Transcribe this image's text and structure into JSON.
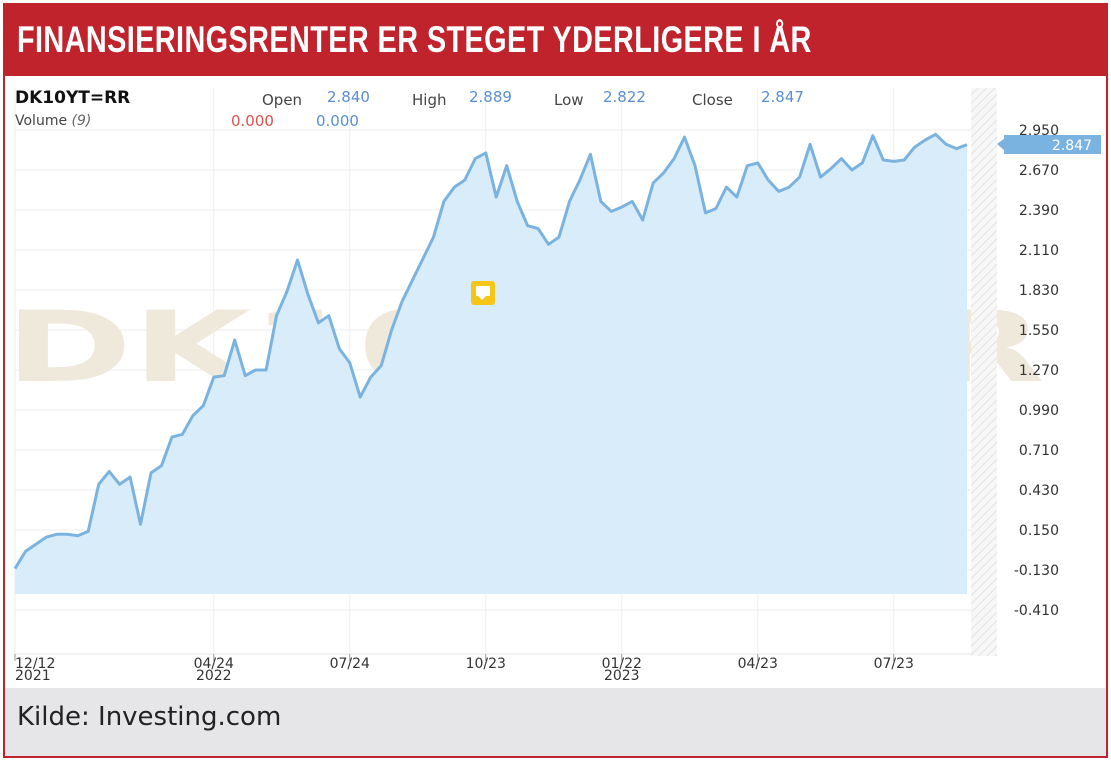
{
  "banner": {
    "title": "FINANSIERINGSRENTER ER STEGET YDERLIGERE I ÅR"
  },
  "header": {
    "symbol": "DK10YT=RR",
    "volume_label": "Volume",
    "volume_period": "(9)",
    "open_label": "Open",
    "open_value": "2.840",
    "high_label": "High",
    "high_value": "2.889",
    "low_label": "Low",
    "low_value": "2.822",
    "close_label": "Close",
    "close_value": "2.847",
    "volume_value_1": "0.000",
    "volume_value_2": "0.000"
  },
  "watermark": "DK10YT=RR",
  "footer": {
    "source": "Kilde: Investing.com"
  },
  "colors": {
    "banner": "#c0232c",
    "line": "#7ab3e0",
    "fill": "#d9ecf9",
    "price_tag": "#7ab3e0",
    "footer_bg": "#e6e6e8"
  },
  "chart_data": {
    "type": "area",
    "title": "FINANSIERINGSRENTER ER STEGET YDERLIGERE I ÅR",
    "ylim": [
      -0.41,
      3.0
    ],
    "y_ticks": [
      "2.950",
      "2.670",
      "2.390",
      "2.110",
      "1.830",
      "1.550",
      "1.270",
      "0.990",
      "0.710",
      "0.430",
      "0.150",
      "-0.130",
      "-0.410"
    ],
    "x_ticks": [
      {
        "label": "12/12",
        "sub": "2021",
        "index": 0
      },
      {
        "label": "04/24",
        "sub": "2022",
        "index": 19
      },
      {
        "label": "07/24",
        "sub": "",
        "index": 32
      },
      {
        "label": "10/23",
        "sub": "",
        "index": 45
      },
      {
        "label": "01/22",
        "sub": "2023",
        "index": 58
      },
      {
        "label": "04/23",
        "sub": "",
        "index": 71
      },
      {
        "label": "07/23",
        "sub": "",
        "index": 84
      }
    ],
    "last_value": "2.847",
    "grid": true,
    "series": [
      {
        "values": [
          -0.12,
          0.0,
          0.05,
          0.1,
          0.12,
          0.12,
          0.11,
          0.14,
          0.47,
          0.56,
          0.47,
          0.52,
          0.19,
          0.55,
          0.6,
          0.8,
          0.82,
          0.95,
          1.02,
          1.22,
          1.23,
          1.48,
          1.23,
          1.27,
          1.27,
          1.65,
          1.82,
          2.04,
          1.8,
          1.6,
          1.65,
          1.42,
          1.32,
          1.08,
          1.22,
          1.3,
          1.55,
          1.75,
          1.9,
          2.05,
          2.2,
          2.45,
          2.55,
          2.6,
          2.75,
          2.79,
          2.48,
          2.7,
          2.45,
          2.28,
          2.26,
          2.15,
          2.2,
          2.45,
          2.6,
          2.78,
          2.45,
          2.38,
          2.41,
          2.45,
          2.32,
          2.58,
          2.65,
          2.75,
          2.9,
          2.7,
          2.37,
          2.4,
          2.55,
          2.48,
          2.7,
          2.72,
          2.6,
          2.52,
          2.55,
          2.62,
          2.85,
          2.62,
          2.68,
          2.75,
          2.67,
          2.72,
          2.91,
          2.74,
          2.73,
          2.74,
          2.83,
          2.88,
          2.92,
          2.85,
          2.82,
          2.847
        ]
      }
    ]
  }
}
